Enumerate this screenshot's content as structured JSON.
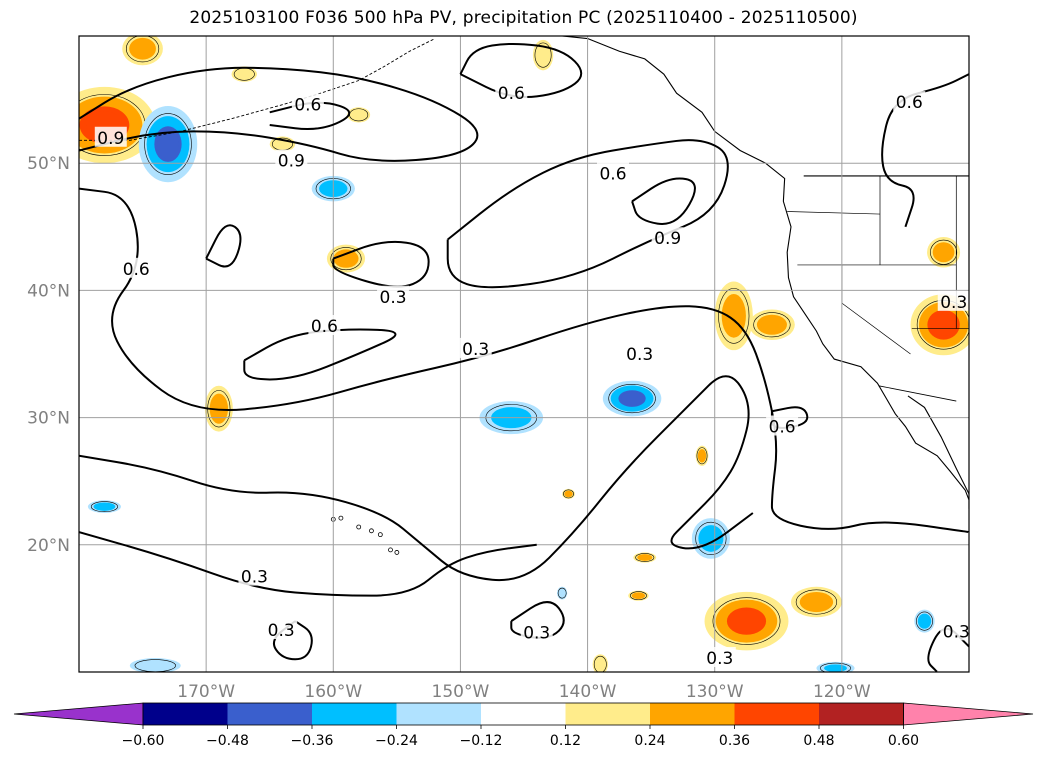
{
  "chart_data": {
    "type": "heatmap",
    "title": "2025103100 F036 500 hPa PV, precipitation PC (2025110400 - 2025110500)",
    "map_extent": {
      "lon_min": -180,
      "lon_max": -110,
      "lat_min": 10,
      "lat_max": 60
    },
    "grid": true,
    "x_ticks": [
      "170°W",
      "160°W",
      "150°W",
      "140°W",
      "130°W",
      "120°W"
    ],
    "x_tick_values": [
      -170,
      -160,
      -150,
      -140,
      -130,
      -120
    ],
    "y_ticks": [
      "50°N",
      "40°N",
      "30°N",
      "20°N"
    ],
    "y_tick_values": [
      50,
      40,
      30,
      20
    ],
    "contour_variable": "500 hPa PV",
    "contour_levels_labeled": [
      0.3,
      0.6,
      0.9
    ],
    "contour_labels": [
      {
        "text": "0.6",
        "lon": -175.5,
        "lat": 41.7
      },
      {
        "text": "0.6",
        "lon": -162,
        "lat": 54.6
      },
      {
        "text": "0.6",
        "lon": -146,
        "lat": 55.5
      },
      {
        "text": "0.6",
        "lon": -138,
        "lat": 49.2
      },
      {
        "text": "0.6",
        "lon": -114.7,
        "lat": 54.8
      },
      {
        "text": "0.6",
        "lon": -160.7,
        "lat": 37.2
      },
      {
        "text": "0.6",
        "lon": -124.7,
        "lat": 29.3
      },
      {
        "text": "0.9",
        "lon": -163.3,
        "lat": 50.2
      },
      {
        "text": "0.9",
        "lon": -133.7,
        "lat": 44.1
      },
      {
        "text": "0.9",
        "lon": -177.5,
        "lat": 52.0
      },
      {
        "text": "0.3",
        "lon": -155.3,
        "lat": 39.5
      },
      {
        "text": "0.3",
        "lon": -148.8,
        "lat": 35.4
      },
      {
        "text": "0.3",
        "lon": -135.9,
        "lat": 35.0
      },
      {
        "text": "0.3",
        "lon": -166.2,
        "lat": 17.5
      },
      {
        "text": "0.3",
        "lon": -164.1,
        "lat": 13.3
      },
      {
        "text": "0.3",
        "lon": -144.0,
        "lat": 13.1
      },
      {
        "text": "0.3",
        "lon": -129.6,
        "lat": 11.1
      },
      {
        "text": "0.3",
        "lon": -111.2,
        "lat": 39.1
      },
      {
        "text": "0.3",
        "lon": -111.0,
        "lat": 13.2
      }
    ],
    "colorbar": {
      "extend": "both",
      "levels": [
        -0.6,
        -0.48,
        -0.36,
        -0.24,
        -0.12,
        0.12,
        0.24,
        0.36,
        0.48,
        0.6
      ],
      "tick_labels": [
        "−0.60",
        "−0.48",
        "−0.36",
        "−0.24",
        "−0.12",
        "0.12",
        "0.24",
        "0.36",
        "0.48",
        "0.60"
      ],
      "colors": [
        "#9932cc",
        "#00008b",
        "#3a5fcd",
        "#00bfff",
        "#b0e2ff",
        "#ffffff",
        "#ffec8b",
        "#ffa500",
        "#ff4500",
        "#b22222",
        "#ff82ab"
      ]
    },
    "precip_pc_regions": [
      {
        "lon": -178,
        "lat": 53,
        "rx": 4,
        "ry": 3,
        "value": 0.42
      },
      {
        "lon": -173,
        "lat": 51.5,
        "rx": 2.3,
        "ry": 3,
        "value": -0.4
      },
      {
        "lon": -160,
        "lat": 48,
        "rx": 1.7,
        "ry": 1,
        "value": -0.3
      },
      {
        "lon": -159,
        "lat": 42.5,
        "rx": 1.5,
        "ry": 1.1,
        "value": 0.3
      },
      {
        "lon": -169,
        "lat": 30.7,
        "rx": 1.1,
        "ry": 1.8,
        "value": 0.3
      },
      {
        "lon": -178,
        "lat": 23,
        "rx": 1.3,
        "ry": 0.5,
        "value": -0.3
      },
      {
        "lon": -175,
        "lat": 59,
        "rx": 1.6,
        "ry": 1.3,
        "value": 0.3
      },
      {
        "lon": -167,
        "lat": 57,
        "rx": 1,
        "ry": 0.6,
        "value": 0.2
      },
      {
        "lon": -174,
        "lat": 10.5,
        "rx": 2,
        "ry": 0.6,
        "value": -0.2
      },
      {
        "lon": -164,
        "lat": 51.5,
        "rx": 1,
        "ry": 0.6,
        "value": 0.2
      },
      {
        "lon": -146,
        "lat": 30,
        "rx": 2.5,
        "ry": 1.3,
        "value": -0.28
      },
      {
        "lon": -136.5,
        "lat": 31.5,
        "rx": 2.3,
        "ry": 1.4,
        "value": -0.4
      },
      {
        "lon": -141.5,
        "lat": 24,
        "rx": 0.5,
        "ry": 0.4,
        "value": 0.3
      },
      {
        "lon": -142,
        "lat": 16.2,
        "rx": 0.4,
        "ry": 0.5,
        "value": -0.2
      },
      {
        "lon": -135.5,
        "lat": 19,
        "rx": 0.9,
        "ry": 0.4,
        "value": 0.3
      },
      {
        "lon": -136,
        "lat": 16,
        "rx": 0.8,
        "ry": 0.4,
        "value": 0.3
      },
      {
        "lon": -139,
        "lat": 10.6,
        "rx": 0.6,
        "ry": 0.8,
        "value": 0.2
      },
      {
        "lon": -131,
        "lat": 27,
        "rx": 0.5,
        "ry": 0.8,
        "value": 0.3
      },
      {
        "lon": -130.3,
        "lat": 20.5,
        "rx": 1.5,
        "ry": 1.6,
        "value": -0.3
      },
      {
        "lon": -127.5,
        "lat": 14,
        "rx": 3.3,
        "ry": 2.3,
        "value": 0.4
      },
      {
        "lon": -122,
        "lat": 15.5,
        "rx": 2,
        "ry": 1.2,
        "value": 0.3
      },
      {
        "lon": -113.5,
        "lat": 14,
        "rx": 0.8,
        "ry": 0.9,
        "value": -0.3
      },
      {
        "lon": -120.5,
        "lat": 10.3,
        "rx": 1.5,
        "ry": 0.5,
        "value": -0.25
      },
      {
        "lon": -128.5,
        "lat": 38,
        "rx": 1.5,
        "ry": 2.7,
        "value": 0.28
      },
      {
        "lon": -125.5,
        "lat": 37.3,
        "rx": 1.8,
        "ry": 1.2,
        "value": 0.3
      },
      {
        "lon": -112,
        "lat": 43,
        "rx": 1.3,
        "ry": 1.2,
        "value": 0.3
      },
      {
        "lon": -112,
        "lat": 37.3,
        "rx": 2.6,
        "ry": 2.4,
        "value": 0.42
      },
      {
        "lon": -158,
        "lat": 53.8,
        "rx": 0.9,
        "ry": 0.6,
        "value": 0.2
      },
      {
        "lon": -143.5,
        "lat": 58.5,
        "rx": 0.8,
        "ry": 1.2,
        "value": 0.2
      }
    ]
  }
}
